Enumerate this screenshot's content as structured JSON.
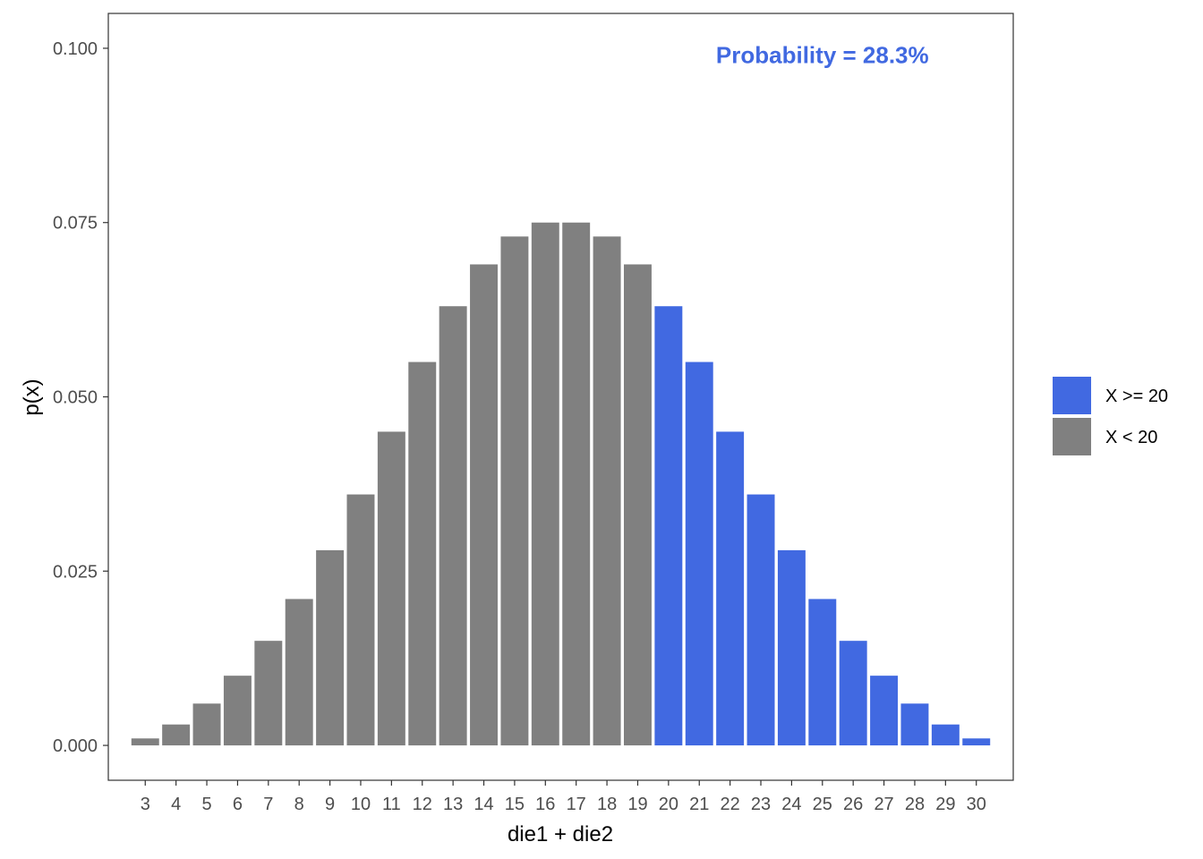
{
  "chart_data": {
    "type": "bar",
    "x": [
      3,
      4,
      5,
      6,
      7,
      8,
      9,
      10,
      11,
      12,
      13,
      14,
      15,
      16,
      17,
      18,
      19,
      20,
      21,
      22,
      23,
      24,
      25,
      26,
      27,
      28,
      29,
      30
    ],
    "values": [
      0.001,
      0.003,
      0.006,
      0.01,
      0.015,
      0.021,
      0.028,
      0.036,
      0.045,
      0.055,
      0.063,
      0.069,
      0.073,
      0.075,
      0.075,
      0.073,
      0.069,
      0.063,
      0.055,
      0.045,
      0.036,
      0.028,
      0.021,
      0.015,
      0.01,
      0.006,
      0.003,
      0.001
    ],
    "groups": [
      "X < 20",
      "X < 20",
      "X < 20",
      "X < 20",
      "X < 20",
      "X < 20",
      "X < 20",
      "X < 20",
      "X < 20",
      "X < 20",
      "X < 20",
      "X < 20",
      "X < 20",
      "X < 20",
      "X < 20",
      "X < 20",
      "X < 20",
      "X >= 20",
      "X >= 20",
      "X >= 20",
      "X >= 20",
      "X >= 20",
      "X >= 20",
      "X >= 20",
      "X >= 20",
      "X >= 20",
      "X >= 20",
      "X >= 20"
    ],
    "xlabel": "die1 + die2",
    "ylabel": "p(x)",
    "ylim": [
      -0.005,
      0.105
    ],
    "xlim": [
      1.8,
      31.2
    ],
    "yticks": [
      0.0,
      0.025,
      0.05,
      0.075,
      0.1
    ],
    "ytick_labels": [
      "0.000",
      "0.025",
      "0.050",
      "0.075",
      "0.100"
    ],
    "annotation": {
      "text": "Probability = 28.3%",
      "x": 25,
      "y": 0.099,
      "color": "#4169E1"
    },
    "legend": {
      "placement": "right",
      "items": [
        {
          "label": "X >= 20",
          "color": "#4169E1"
        },
        {
          "label": "X < 20",
          "color": "#808080"
        }
      ]
    },
    "grid": false
  }
}
